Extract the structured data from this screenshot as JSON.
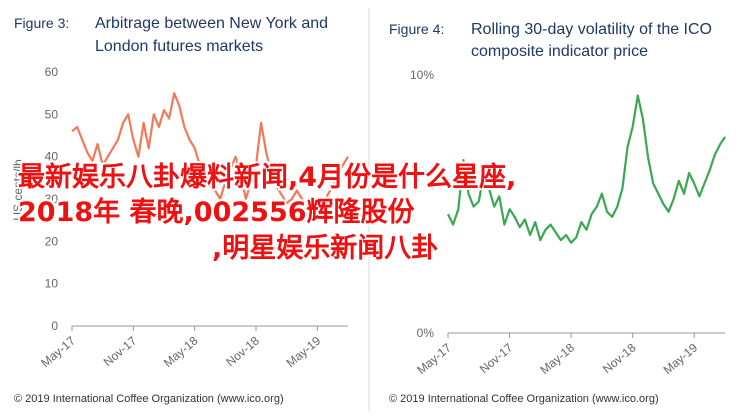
{
  "chart_data": [
    {
      "type": "line",
      "figure_label": "Figure 3:",
      "title_lines": [
        "Arbitrage between New York and",
        "London futures markets"
      ],
      "ylabel": "US cents/lb",
      "ylim": [
        0,
        60
      ],
      "yticks": [
        "0",
        "10",
        "20",
        "30",
        "40",
        "50",
        "60"
      ],
      "xlim": [
        0,
        27
      ],
      "xticks": [
        {
          "x": 0,
          "label": "May-17"
        },
        {
          "x": 6,
          "label": "Nov-17"
        },
        {
          "x": 12,
          "label": "May-18"
        },
        {
          "x": 18,
          "label": "Nov-18"
        },
        {
          "x": 24,
          "label": "May-19"
        }
      ],
      "color": "#f07a5a",
      "series": [
        {
          "x": [
            0,
            0.5,
            1,
            1.5,
            2,
            2.5,
            3,
            3.5,
            4,
            4.5,
            5,
            5.5,
            6,
            6.5,
            7,
            7.5,
            8,
            8.5,
            9,
            9.5,
            10,
            10.5,
            11,
            11.5,
            12,
            12.5,
            13,
            13.5,
            14,
            14.5,
            15,
            15.5,
            16,
            16.5,
            17,
            17.5,
            18,
            18.5,
            19,
            19.5,
            20,
            20.5,
            21,
            21.5,
            22,
            22.5,
            23,
            23.5,
            24,
            24.5,
            25,
            25.5,
            26,
            26.5,
            27
          ],
          "values": [
            46,
            47,
            44,
            41,
            39,
            43,
            38,
            40,
            42,
            44,
            48,
            50,
            44,
            40,
            48,
            42,
            50,
            47,
            51,
            49,
            55,
            52,
            47,
            44,
            42,
            38,
            35,
            33,
            32,
            30,
            34,
            37,
            40,
            36,
            30,
            34,
            38,
            48,
            41,
            36,
            33,
            31,
            29,
            30,
            32,
            30,
            27,
            26,
            25,
            28,
            31,
            33,
            36,
            38,
            40
          ]
        }
      ],
      "credit": "© 2019 International Coffee Organization (www.ico.org)"
    },
    {
      "type": "line",
      "figure_label": "Figure 4:",
      "title_lines": [
        "Rolling 30-day volatility of the ICO",
        "composite indicator price"
      ],
      "ylim": [
        0,
        10
      ],
      "yticks": [
        "0%",
        "10%"
      ],
      "xlim": [
        0,
        27
      ],
      "xticks": [
        {
          "x": 0,
          "label": "May-17"
        },
        {
          "x": 6,
          "label": "Nov-17"
        },
        {
          "x": 12,
          "label": "May-18"
        },
        {
          "x": 18,
          "label": "Nov-18"
        },
        {
          "x": 24,
          "label": "May-19"
        }
      ],
      "color": "#3aa852",
      "series": [
        {
          "x": [
            0,
            0.5,
            1,
            1.5,
            2,
            2.5,
            3,
            3.5,
            4,
            4.5,
            5,
            5.5,
            6,
            6.5,
            7,
            7.5,
            8,
            8.5,
            9,
            9.5,
            10,
            10.5,
            11,
            11.5,
            12,
            12.5,
            13,
            13.5,
            14,
            14.5,
            15,
            15.5,
            16,
            16.5,
            17,
            17.5,
            18,
            18.5,
            19,
            19.5,
            20,
            20.5,
            21,
            21.5,
            22,
            22.5,
            23,
            23.5,
            24,
            24.5,
            25,
            25.5,
            26,
            26.5,
            27
          ],
          "values": [
            4.6,
            4.2,
            4.8,
            6.7,
            5.4,
            4.9,
            5.1,
            6.2,
            5.6,
            4.9,
            5.3,
            4.2,
            4.8,
            4.5,
            4.1,
            4.4,
            3.8,
            4.3,
            3.6,
            4.0,
            4.2,
            3.9,
            3.6,
            3.8,
            3.5,
            3.7,
            4.3,
            4.0,
            4.6,
            4.9,
            5.4,
            4.7,
            4.5,
            4.9,
            5.6,
            7.2,
            8.0,
            9.2,
            8.3,
            6.8,
            5.8,
            5.4,
            5.0,
            4.7,
            5.2,
            5.9,
            5.4,
            6.2,
            5.8,
            5.3,
            5.8,
            6.3,
            6.9,
            7.3,
            7.6
          ]
        }
      ],
      "credit": "© 2019 International Coffee Organization (www.ico.org)"
    }
  ],
  "overlay": {
    "line1": "最新娱乐八卦爆料新闻,4月份是什么星座,",
    "line2": "2018年 春晚,002556辉隆股份",
    "line3": ",明星娱乐新闻八卦"
  }
}
